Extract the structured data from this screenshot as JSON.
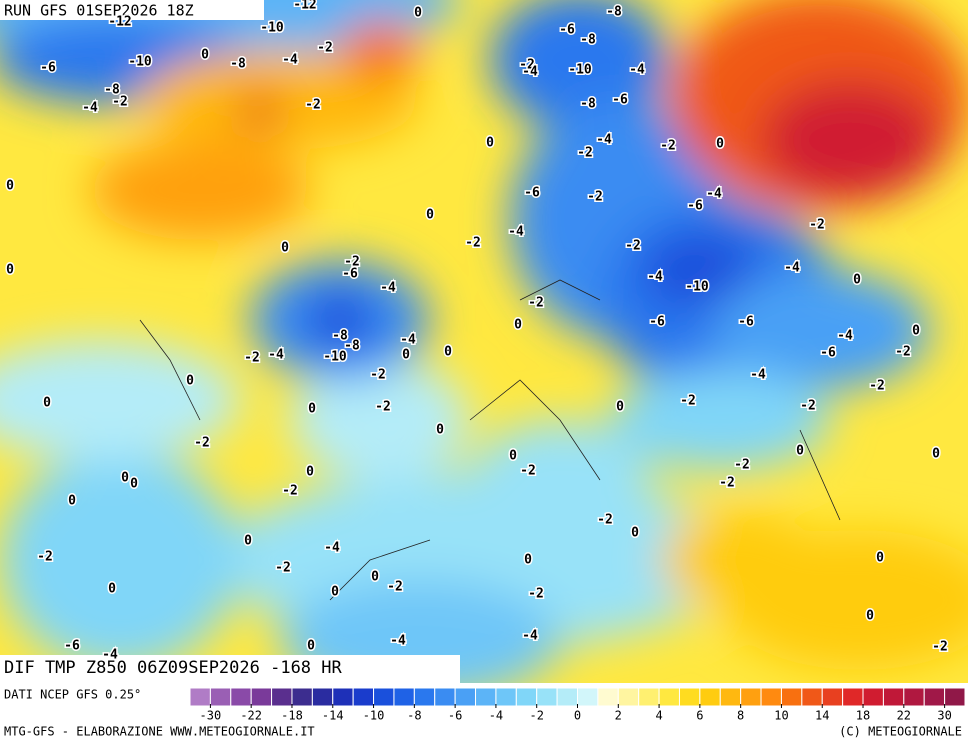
{
  "header": {
    "run": "RUN GFS 01SEP2026 18Z",
    "field": "DIF TMP Z850 06Z09SEP2026 -168 HR"
  },
  "footer": {
    "source": "DATI NCEP GFS 0.25°",
    "credit": "MTG-GFS - ELABORAZIONE WWW.METEOGIORNALE.IT",
    "copyright": "(C) METEOGIORNALE"
  },
  "colorbar": {
    "colors": [
      "#b07cc6",
      "#9a5fb4",
      "#8a4aa8",
      "#7a3a9a",
      "#5a2f8e",
      "#3c2d8f",
      "#2a2ca0",
      "#1e30b8",
      "#1a3ccc",
      "#1a50dc",
      "#1f62e6",
      "#2a78ee",
      "#3a8cf2",
      "#4aa0f5",
      "#5cb4f7",
      "#6ec6f8",
      "#80d6f8",
      "#98e2f8",
      "#b4ecf8",
      "#d2f6fa",
      "#fffbd0",
      "#fff5a0",
      "#fff070",
      "#ffe840",
      "#ffdc20",
      "#ffcc10",
      "#ffb810",
      "#ffa010",
      "#ff8a10",
      "#f87010",
      "#f05818",
      "#e84020",
      "#e02828",
      "#d01c30",
      "#c01838",
      "#b01840",
      "#a01848",
      "#901848"
    ],
    "ticks": [
      -30,
      -22,
      -18,
      -14,
      -10,
      -8,
      -6,
      -4,
      -2,
      0,
      2,
      4,
      6,
      8,
      10,
      14,
      18,
      22,
      30
    ]
  },
  "map_labels": [
    -12,
    -10,
    -12,
    -6,
    -10,
    -8,
    -4,
    -2,
    0,
    -8,
    -4,
    -2,
    -2,
    0,
    0,
    -2,
    -4,
    -10,
    -8,
    -6,
    -8,
    -4,
    -8,
    -6,
    -4,
    -2,
    -2,
    0,
    -6,
    -2,
    -4,
    -6,
    -4,
    -2,
    -2,
    0,
    0,
    -2,
    -6,
    -4,
    0,
    0,
    -4,
    -10,
    -4,
    -2,
    0,
    -2,
    0,
    -6,
    -6,
    -4,
    -6,
    0,
    -2,
    -8,
    -8,
    -10,
    -4,
    0,
    0,
    -2,
    -4,
    0,
    -2,
    -2,
    -4,
    -2,
    -2,
    -2,
    0,
    0,
    0,
    -2,
    0,
    0,
    -2,
    0,
    0,
    0,
    -2,
    -2,
    -2,
    0,
    0,
    0,
    -2,
    0,
    0,
    -4,
    -2,
    -2,
    0,
    0,
    0,
    -2,
    0,
    0,
    -2,
    0,
    -6,
    -4,
    -4,
    0,
    -2,
    -4
  ]
}
